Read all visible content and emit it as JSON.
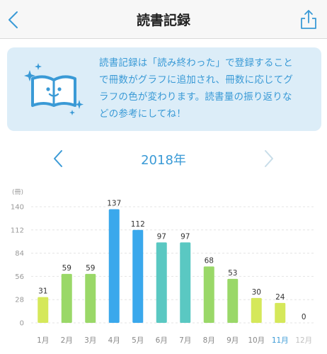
{
  "header": {
    "title": "読書記録",
    "back_icon": "chevron-left-icon",
    "share_icon": "share-icon"
  },
  "info": {
    "lines": [
      "読書記録は「読み終わった」で登録すること",
      "で冊数がグラフに追加され、冊数に応じてグ",
      "ラフの色が変わります。読書量の振り返りな",
      "どの参考にしてね！"
    ],
    "illustration": "smiling-book-icon"
  },
  "year_nav": {
    "label": "2018年",
    "prev_icon": "chevron-left-icon",
    "next_icon": "chevron-right-icon"
  },
  "colors": {
    "accent": "#3a9ad6",
    "nav_disabled": "#c8dde9"
  },
  "chart_data": {
    "type": "bar",
    "unit_label": "(冊)",
    "categories": [
      "1月",
      "2月",
      "3月",
      "4月",
      "5月",
      "6月",
      "7月",
      "8月",
      "9月",
      "10月",
      "11月",
      "12月"
    ],
    "values": [
      31,
      59,
      59,
      137,
      112,
      97,
      97,
      68,
      53,
      30,
      24,
      0
    ],
    "data_labels": [
      "31",
      "59",
      "59",
      "137",
      "112",
      "97",
      "97",
      "68",
      "53",
      "30",
      "24",
      "0"
    ],
    "bar_colors": [
      "#d5e85a",
      "#9ad868",
      "#9ad868",
      "#3aa8ec",
      "#3aa8ec",
      "#5ac8c2",
      "#5ac8c2",
      "#9ad868",
      "#9ad868",
      "#d5e85a",
      "#d5e85a",
      "#d5e85a"
    ],
    "yticks": [
      0,
      28,
      56,
      84,
      112,
      140
    ],
    "ylim": [
      0,
      140
    ],
    "grid": true,
    "highlight_category": "11月",
    "highlight_color": "#3a9ad6",
    "muted_category": "12月",
    "muted_color": "#c0c0c0"
  }
}
